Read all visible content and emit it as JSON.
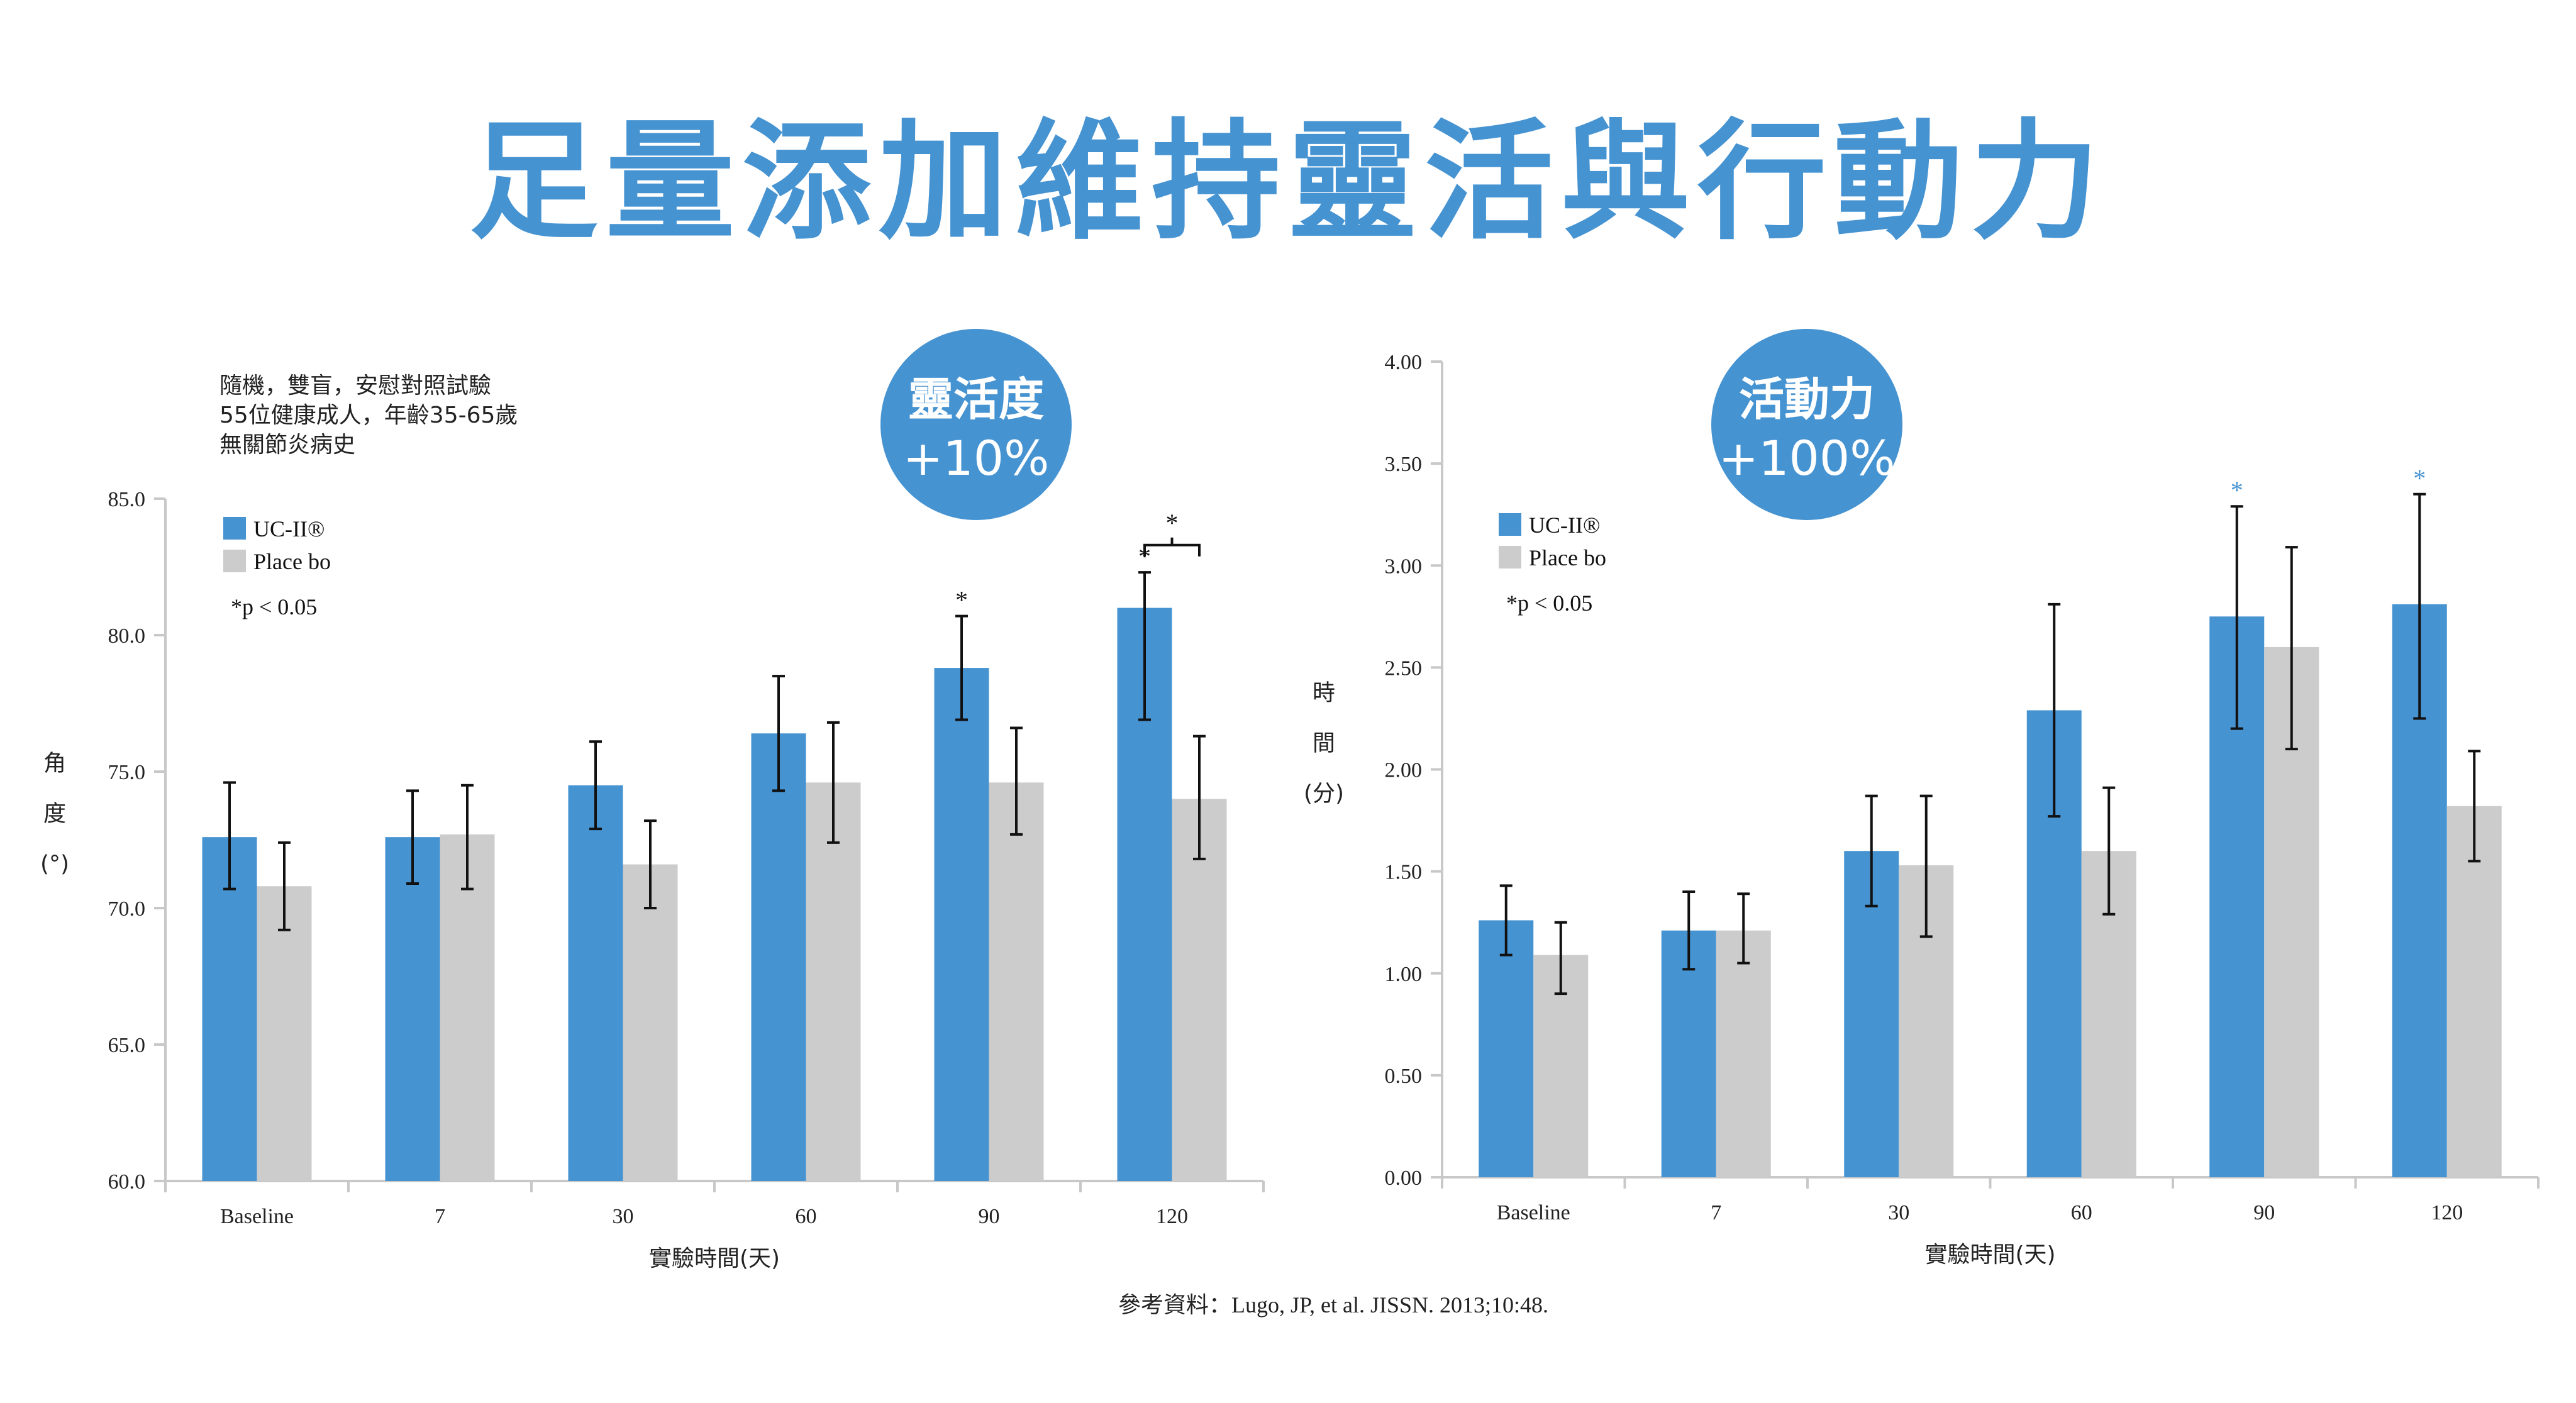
{
  "title": "足量添加維持靈活與行動力",
  "reference": "參考資料：Lugo, JP, et al. JISSN. 2013;10:48.",
  "colors": {
    "title": "#4693d2",
    "uc": "#4693d2",
    "placebo": "#cccccc",
    "axis": "#c8c8c8",
    "circle": "#4693d2"
  },
  "chart_data": [
    {
      "type": "bar",
      "study_notes": [
        "隨機，雙盲，安慰對照試驗",
        "55位健康成人，年齡35-65歲",
        "無關節炎病史"
      ],
      "badge": {
        "line1": "靈活度",
        "line2": "+10%"
      },
      "ylabel": "角度(°)",
      "ylabel_chars": [
        "角",
        "度",
        "(°)"
      ],
      "xlabel": "實驗時間(天)",
      "categories": [
        "Baseline",
        "7",
        "30",
        "60",
        "90",
        "120"
      ],
      "ylim": [
        60,
        85
      ],
      "yticks": [
        "60.0",
        "65.0",
        "70.0",
        "75.0",
        "80.0",
        "85.0"
      ],
      "legend": {
        "placement": "top-left",
        "note": "*p < 0.05"
      },
      "series": [
        {
          "name": "UC-II®",
          "values": [
            72.6,
            72.6,
            74.5,
            76.4,
            78.8,
            81.0
          ],
          "err_low": [
            70.7,
            70.9,
            72.9,
            74.3,
            76.9,
            76.9
          ],
          "err_high": [
            74.6,
            74.3,
            76.1,
            78.5,
            80.7,
            82.3
          ],
          "significant": [
            false,
            false,
            false,
            false,
            true,
            true
          ]
        },
        {
          "name": "Place bo",
          "values": [
            70.8,
            72.7,
            71.6,
            74.6,
            74.6,
            74.0
          ],
          "err_low": [
            69.2,
            70.7,
            70.0,
            72.4,
            72.7,
            71.8
          ],
          "err_high": [
            72.4,
            74.5,
            73.2,
            76.8,
            76.6,
            76.3
          ],
          "significant": [
            false,
            false,
            false,
            false,
            false,
            false
          ]
        }
      ],
      "between_group_significance": {
        "category": "120",
        "mark": "*"
      },
      "grid": false
    },
    {
      "type": "bar",
      "badge": {
        "line1": "活動力",
        "line2": "+100%"
      },
      "ylabel": "時間(分)",
      "ylabel_chars": [
        "時",
        "間",
        "(分)"
      ],
      "xlabel": "實驗時間(天)",
      "categories": [
        "Baseline",
        "7",
        "30",
        "60",
        "90",
        "120"
      ],
      "ylim": [
        0,
        4
      ],
      "yticks": [
        "0.00",
        "0.50",
        "1.00",
        "1.50",
        "2.00",
        "2.50",
        "3.00",
        "3.50",
        "4.00"
      ],
      "legend": {
        "placement": "top-left",
        "note": "*p < 0.05"
      },
      "series": [
        {
          "name": "UC-II®",
          "values": [
            1.26,
            1.21,
            1.6,
            2.29,
            2.75,
            2.81
          ],
          "err_low": [
            1.09,
            1.02,
            1.33,
            1.77,
            2.2,
            2.25
          ],
          "err_high": [
            1.43,
            1.4,
            1.87,
            2.81,
            3.29,
            3.35
          ],
          "significant": [
            false,
            false,
            false,
            false,
            true,
            true
          ]
        },
        {
          "name": "Place bo",
          "values": [
            1.09,
            1.21,
            1.53,
            1.6,
            2.6,
            1.82
          ],
          "err_low": [
            0.9,
            1.05,
            1.18,
            1.29,
            2.1,
            1.55
          ],
          "err_high": [
            1.25,
            1.39,
            1.87,
            1.91,
            3.09,
            2.09
          ],
          "significant": [
            false,
            false,
            false,
            false,
            false,
            false
          ]
        }
      ],
      "grid": false
    }
  ]
}
